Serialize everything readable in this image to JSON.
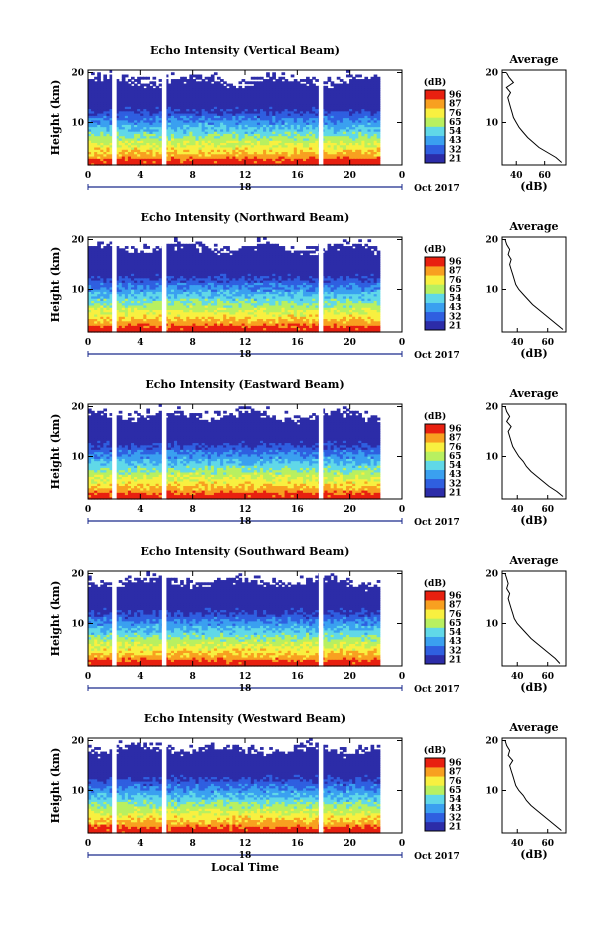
{
  "chart_data": [
    {
      "type": "heatmap",
      "title": "Echo Intensity (Vertical Beam)",
      "ylabel": "Height (km)",
      "xlabel": "",
      "x_ticks": [
        "0",
        "4",
        "8",
        "12",
        "16",
        "20",
        "0"
      ],
      "y_ticks": [
        "20",
        "10"
      ],
      "date_center": "18",
      "date_right": "Oct 2017",
      "xlim": [
        0,
        24
      ],
      "ylim": [
        1.5,
        20.5
      ],
      "colorbar_unit": "(dB)",
      "colorbar_ticks": [
        "96",
        "87",
        "76",
        "65",
        "54",
        "43",
        "32",
        "21"
      ],
      "data_gaps_hours": [
        2.0,
        5.8,
        17.8
      ],
      "data_end_hour": 22.3,
      "profile": {
        "title": "Average",
        "xlabel": "(dB)",
        "x_ticks": [
          "40",
          "60"
        ],
        "y_ticks": [
          "20",
          "10"
        ],
        "xlim": [
          30,
          75
        ],
        "height": [
          2,
          3,
          4,
          5,
          6,
          7,
          8,
          9,
          10,
          11,
          12,
          13,
          14,
          15,
          16,
          17,
          18,
          19,
          20
        ],
        "value": [
          72,
          68,
          62,
          56,
          52,
          48,
          45,
          42,
          40,
          38,
          37,
          36,
          35,
          34,
          36,
          33,
          38,
          35,
          33
        ]
      }
    },
    {
      "type": "heatmap",
      "title": "Echo Intensity (Northward Beam)",
      "ylabel": "Height (km)",
      "xlabel": "",
      "x_ticks": [
        "0",
        "4",
        "8",
        "12",
        "16",
        "20",
        "0"
      ],
      "y_ticks": [
        "20",
        "10"
      ],
      "date_center": "18",
      "date_right": "Oct 2017",
      "xlim": [
        0,
        24
      ],
      "ylim": [
        1.5,
        20.5
      ],
      "colorbar_unit": "(dB)",
      "colorbar_ticks": [
        "96",
        "87",
        "76",
        "65",
        "54",
        "43",
        "32",
        "21"
      ],
      "data_gaps_hours": [
        2.0,
        5.8,
        17.8
      ],
      "data_end_hour": 22.3,
      "profile": {
        "title": "Average",
        "xlabel": "(dB)",
        "x_ticks": [
          "40",
          "60"
        ],
        "y_ticks": [
          "20",
          "10"
        ],
        "xlim": [
          30,
          72
        ],
        "height": [
          2,
          3,
          4,
          5,
          6,
          7,
          8,
          9,
          10,
          11,
          12,
          13,
          14,
          15,
          16,
          17,
          18,
          19,
          20
        ],
        "value": [
          70,
          66,
          62,
          58,
          54,
          50,
          47,
          44,
          41,
          39,
          38,
          37,
          36,
          35,
          36,
          34,
          35,
          33,
          32
        ]
      }
    },
    {
      "type": "heatmap",
      "title": "Echo Intensity (Eastward Beam)",
      "ylabel": "Height (km)",
      "xlabel": "",
      "x_ticks": [
        "0",
        "4",
        "8",
        "12",
        "16",
        "20",
        "0"
      ],
      "y_ticks": [
        "20",
        "10"
      ],
      "date_center": "18",
      "date_right": "Oct 2017",
      "xlim": [
        0,
        24
      ],
      "ylim": [
        1.5,
        20.5
      ],
      "colorbar_unit": "(dB)",
      "colorbar_ticks": [
        "96",
        "87",
        "76",
        "65",
        "54",
        "43",
        "32",
        "21"
      ],
      "data_gaps_hours": [
        2.0,
        5.8,
        17.8
      ],
      "data_end_hour": 22.3,
      "profile": {
        "title": "Average",
        "xlabel": "(dB)",
        "x_ticks": [
          "40",
          "60"
        ],
        "y_ticks": [
          "20",
          "10"
        ],
        "xlim": [
          30,
          72
        ],
        "height": [
          2,
          3,
          4,
          5,
          6,
          7,
          8,
          9,
          10,
          11,
          12,
          13,
          14,
          15,
          16,
          17,
          18,
          19,
          20
        ],
        "value": [
          70,
          66,
          61,
          57,
          53,
          49,
          46,
          44,
          41,
          39,
          37,
          36,
          35,
          34,
          36,
          33,
          35,
          33,
          32
        ]
      }
    },
    {
      "type": "heatmap",
      "title": "Echo Intensity (Southward Beam)",
      "ylabel": "Height (km)",
      "xlabel": "",
      "x_ticks": [
        "0",
        "4",
        "8",
        "12",
        "16",
        "20",
        "0"
      ],
      "y_ticks": [
        "20",
        "10"
      ],
      "date_center": "18",
      "date_right": "Oct 2017",
      "xlim": [
        0,
        24
      ],
      "ylim": [
        1.5,
        20.5
      ],
      "colorbar_unit": "(dB)",
      "colorbar_ticks": [
        "96",
        "87",
        "76",
        "65",
        "54",
        "43",
        "32",
        "21"
      ],
      "data_gaps_hours": [
        2.0,
        5.8,
        17.8
      ],
      "data_end_hour": 22.3,
      "profile": {
        "title": "Average",
        "xlabel": "(dB)",
        "x_ticks": [
          "40",
          "60"
        ],
        "y_ticks": [
          "20",
          "10"
        ],
        "xlim": [
          30,
          72
        ],
        "height": [
          2,
          3,
          4,
          5,
          6,
          7,
          8,
          9,
          10,
          11,
          12,
          13,
          14,
          15,
          16,
          17,
          18,
          19,
          20
        ],
        "value": [
          68,
          65,
          61,
          57,
          53,
          49,
          46,
          43,
          40,
          38,
          37,
          36,
          35,
          34,
          35,
          33,
          34,
          33,
          32
        ]
      }
    },
    {
      "type": "heatmap",
      "title": "Echo Intensity (Westward Beam)",
      "ylabel": "Height (km)",
      "xlabel": "Local Time",
      "x_ticks": [
        "0",
        "4",
        "8",
        "12",
        "16",
        "20",
        "0"
      ],
      "y_ticks": [
        "20",
        "10"
      ],
      "date_center": "18",
      "date_right": "Oct 2017",
      "xlim": [
        0,
        24
      ],
      "ylim": [
        1.5,
        20.5
      ],
      "colorbar_unit": "(dB)",
      "colorbar_ticks": [
        "96",
        "87",
        "76",
        "65",
        "54",
        "43",
        "32",
        "21"
      ],
      "data_gaps_hours": [
        2.0,
        5.8,
        17.8
      ],
      "data_end_hour": 22.3,
      "profile": {
        "title": "Average",
        "xlabel": "(dB)",
        "x_ticks": [
          "40",
          "60"
        ],
        "y_ticks": [
          "20",
          "10"
        ],
        "xlim": [
          30,
          72
        ],
        "height": [
          2,
          3,
          4,
          5,
          6,
          7,
          8,
          9,
          10,
          11,
          12,
          13,
          14,
          15,
          16,
          17,
          18,
          19,
          20
        ],
        "value": [
          69,
          65,
          61,
          57,
          53,
          49,
          46,
          44,
          41,
          39,
          38,
          37,
          36,
          35,
          37,
          34,
          35,
          33,
          32
        ]
      }
    }
  ],
  "colors": {
    "colorbar": [
      "#2c2ca8",
      "#2f5fe0",
      "#3aa0f0",
      "#60d8e8",
      "#b8f060",
      "#f8f040",
      "#f8a020",
      "#e82010"
    ]
  }
}
